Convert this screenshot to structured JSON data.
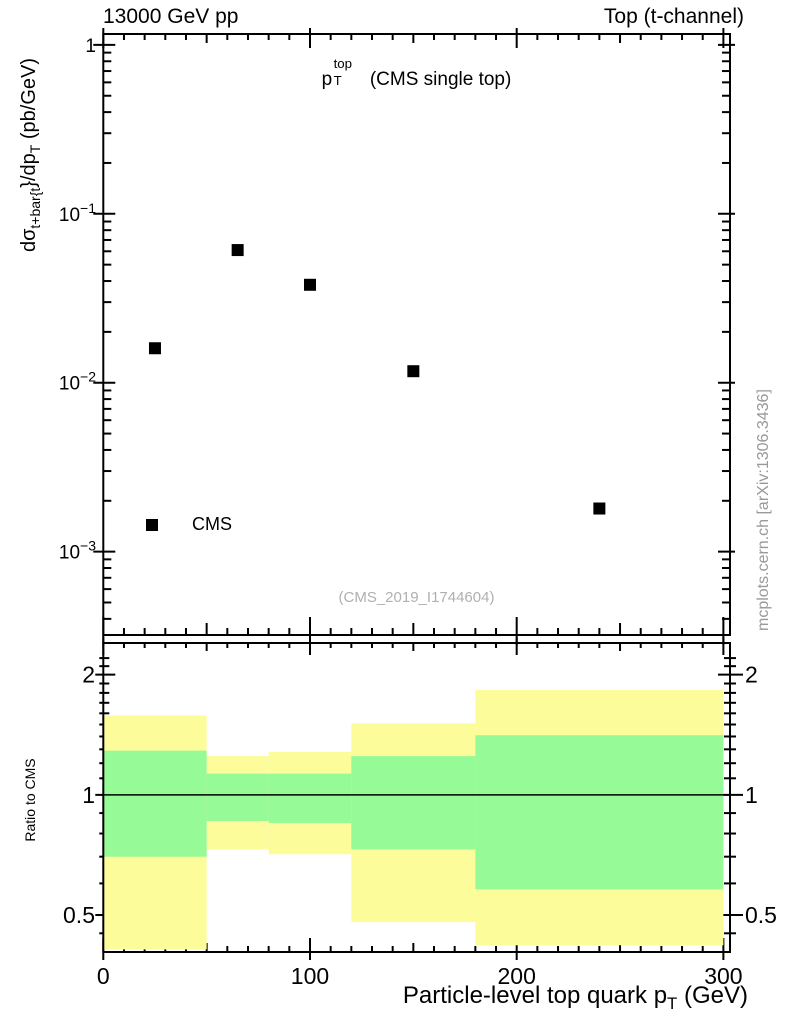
{
  "header": {
    "left": "13000 GeV pp",
    "right": "Top (t-channel)"
  },
  "title": {
    "base": "p",
    "sup": "top",
    "sub": "T",
    "suffix": " (CMS single top)"
  },
  "legend": [
    {
      "label": "CMS",
      "marker": "filled-black-square"
    }
  ],
  "reference_label": "(CMS_2019_I1744604)",
  "watermark": "mcplots.cern.ch [arXiv:1306.3436]",
  "y_label": {
    "p1": "dσ",
    "s1": "t+bar{t",
    "p2": "}/dp",
    "s2": "T",
    "p3": " (pb/GeV)"
  },
  "ratio_y_label": "Ratio to CMS",
  "x_label": {
    "p1": "Particle-level top quark p",
    "s1": "T",
    "p2": " (GeV)"
  },
  "colors": {
    "outer_band": "#fcfc9b",
    "inner_band": "#96fa96",
    "marker": "#000000",
    "axis": "#000000",
    "reference_text": "#b0b0b0",
    "watermark_text": "#999999"
  },
  "chart_data": {
    "type": "scatter",
    "x_axis": {
      "label": "Particle-level top quark p_T (GeV)",
      "range": [
        0,
        303
      ],
      "major_ticks": [
        0,
        100,
        200,
        300
      ],
      "medium_ticks": [
        50,
        150,
        250
      ],
      "minor_step": 10
    },
    "main_panel": {
      "title": "p_T^top (CMS single top)",
      "y_axis": {
        "scale": "log",
        "range": [
          0.000321,
          1.16
        ],
        "ticks": [
          {
            "v": 1,
            "label": "1"
          },
          {
            "v": 0.1,
            "label": "10",
            "exp": "−1"
          },
          {
            "v": 0.01,
            "label": "10",
            "exp": "−2"
          },
          {
            "v": 0.001,
            "label": "10",
            "exp": "−3"
          }
        ]
      },
      "series": [
        {
          "name": "CMS",
          "marker": "filled-black-square",
          "x": [
            25,
            65,
            100,
            150,
            240
          ],
          "y": [
            0.016,
            0.061,
            0.038,
            0.0117,
            0.0018
          ]
        }
      ]
    },
    "ratio_panel": {
      "y_axis": {
        "scale": "log",
        "range": [
          0.404,
          2.4
        ],
        "ticks": [
          {
            "v": 2,
            "label": "2"
          },
          {
            "v": 1,
            "label": "1"
          },
          {
            "v": 0.5,
            "label": "0.5"
          }
        ]
      },
      "reference_line": 1,
      "bin_edges": [
        0,
        50,
        80,
        120,
        180,
        300
      ],
      "bands": {
        "outer": {
          "lo": [
            0.41,
            0.73,
            0.71,
            0.48,
            0.42
          ],
          "hi": [
            1.58,
            1.25,
            1.28,
            1.51,
            1.83
          ]
        },
        "inner": {
          "lo": [
            0.7,
            0.86,
            0.85,
            0.73,
            0.58
          ],
          "hi": [
            1.29,
            1.13,
            1.13,
            1.25,
            1.41
          ]
        }
      }
    }
  }
}
